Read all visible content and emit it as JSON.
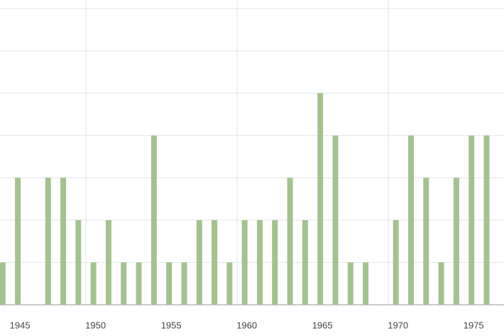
{
  "chart_data": {
    "type": "bar",
    "x": [
      1944,
      1945,
      1946,
      1947,
      1948,
      1949,
      1950,
      1951,
      1952,
      1953,
      1954,
      1955,
      1956,
      1957,
      1958,
      1959,
      1960,
      1961,
      1962,
      1963,
      1964,
      1965,
      1966,
      1967,
      1968,
      1969,
      1970,
      1971,
      1972,
      1973,
      1974,
      1975,
      1976
    ],
    "values": [
      1,
      3,
      0,
      3,
      3,
      2,
      1,
      2,
      1,
      1,
      4,
      1,
      1,
      2,
      2,
      1,
      2,
      2,
      2,
      3,
      2,
      5,
      4,
      1,
      1,
      0,
      2,
      4,
      3,
      1,
      3,
      4,
      4
    ],
    "color": "#a4c28f",
    "xlim": [
      1944.32,
      1977.65
    ],
    "xticks": [
      1945,
      1950,
      1955,
      1960,
      1965,
      1970,
      1975
    ],
    "x_grid": [
      1950,
      1960,
      1970
    ],
    "ylim": [
      0,
      7
    ],
    "yticks": [
      0,
      1,
      2,
      3,
      4,
      5,
      6,
      7
    ],
    "grid": true
  }
}
